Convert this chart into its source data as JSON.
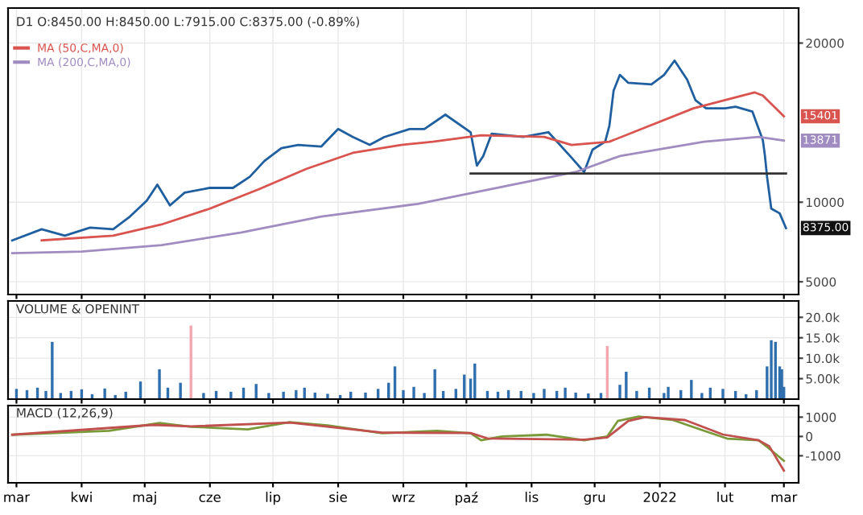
{
  "chart_data": [
    {
      "type": "line",
      "title": "D1 O:8450.00 H:8450.00 L:7915.00 C:8375.00 (-0.89%)",
      "legend": "top left",
      "grid": true,
      "tick_labels": "y",
      "xlim": [
        "2021-02-25",
        "2022-03-08"
      ],
      "ylim": [
        4200,
        22200
      ],
      "yticks": [
        5000,
        10000,
        20000
      ],
      "series": [
        {
          "color": "#1f5fa0",
          "x": [
            "2021-02-27",
            "2021-03-13",
            "2021-03-24",
            "2021-04-05",
            "2021-04-16",
            "2021-04-24",
            "2021-05-02",
            "2021-05-07",
            "2021-05-13",
            "2021-05-20",
            "2021-06-01",
            "2021-06-12",
            "2021-06-20",
            "2021-06-27",
            "2021-07-05",
            "2021-07-13",
            "2021-07-24",
            "2021-08-01",
            "2021-08-08",
            "2021-08-16",
            "2021-08-23",
            "2021-09-04",
            "2021-09-11",
            "2021-09-21",
            "2021-10-03",
            "2021-10-06",
            "2021-10-09",
            "2021-10-13",
            "2021-10-28",
            "2021-11-09",
            "2021-11-20",
            "2021-11-26",
            "2021-11-30",
            "2021-12-06",
            "2021-12-08",
            "2021-12-10",
            "2021-12-13",
            "2021-12-17",
            "2021-12-28",
            "2022-01-03",
            "2022-01-08",
            "2022-01-14",
            "2022-01-18",
            "2022-01-23",
            "2022-02-01",
            "2022-02-06",
            "2022-02-14",
            "2022-02-19",
            "2022-02-20",
            "2022-02-21",
            "2022-02-23",
            "2022-02-27",
            "2022-03-02"
          ],
          "values": [
            7600,
            8300,
            7900,
            8400,
            8300,
            9100,
            10100,
            11100,
            9800,
            10600,
            10900,
            10900,
            11600,
            12600,
            13400,
            13600,
            13500,
            14600,
            14100,
            13600,
            14100,
            14600,
            14600,
            15500,
            14400,
            12300,
            12900,
            14300,
            14100,
            14400,
            12800,
            11900,
            13300,
            13800,
            14800,
            17000,
            18000,
            17500,
            17400,
            18000,
            18900,
            17700,
            16400,
            15900,
            15900,
            16000,
            15700,
            13900,
            12900,
            11600,
            9600,
            9300,
            8375
          ]
        },
        {
          "name": "MA (50,C,MA,0)",
          "color": "#d9534f",
          "x": [
            "2021-03-13",
            "2021-04-16",
            "2021-05-09",
            "2021-06-01",
            "2021-06-24",
            "2021-07-17",
            "2021-08-08",
            "2021-08-31",
            "2021-09-15",
            "2021-10-08",
            "2021-11-07",
            "2021-11-20",
            "2021-12-08",
            "2022-01-17",
            "2022-02-15",
            "2022-02-19",
            "2022-03-01"
          ],
          "values": [
            7600,
            7900,
            8600,
            9600,
            10800,
            12100,
            13100,
            13600,
            13800,
            14200,
            14100,
            13600,
            13800,
            15900,
            16900,
            16700,
            15401
          ]
        },
        {
          "name": "MA (200,C,MA,0)",
          "color": "#a08cc0",
          "x": [
            "2021-02-27",
            "2021-04-01",
            "2021-05-09",
            "2021-06-16",
            "2021-07-24",
            "2021-09-08",
            "2021-11-22",
            "2021-12-13",
            "2022-01-22",
            "2022-02-17",
            "2022-03-01"
          ],
          "values": [
            6800,
            6900,
            7300,
            8100,
            9100,
            9900,
            11900,
            12900,
            13800,
            14100,
            13871
          ]
        },
        {
          "color": "#333333",
          "x": [
            "2021-10-03",
            "2022-03-02"
          ],
          "values": [
            11800,
            11800
          ]
        }
      ],
      "annotations": [
        {
          "text": "8375.00",
          "x": "2022-03-02",
          "y": 8375
        },
        {
          "text": "15401",
          "x": "2022-03-01",
          "y": 15401
        },
        {
          "text": "13871",
          "x": "2022-03-01",
          "y": 13871
        }
      ]
    },
    {
      "type": "bar",
      "title": "VOLUME & OPENINT",
      "grid": true,
      "tick_labels": "y",
      "xlim": [
        "2021-02-25",
        "2022-03-08"
      ],
      "ylim": [
        0,
        24000
      ],
      "yticks": [
        {
          "value": 5000,
          "label": "5.00k"
        },
        {
          "value": 10000,
          "label": "10.0k"
        },
        {
          "value": 15000,
          "label": "15.0k"
        },
        {
          "value": 20000,
          "label": "20.0k"
        }
      ],
      "x": [
        "2021-03-01",
        "2021-03-06",
        "2021-03-11",
        "2021-03-15",
        "2021-03-18",
        "2021-03-22",
        "2021-03-27",
        "2021-04-01",
        "2021-04-06",
        "2021-04-12",
        "2021-04-17",
        "2021-04-22",
        "2021-04-29",
        "2021-05-08",
        "2021-05-12",
        "2021-05-18",
        "2021-05-23",
        "2021-05-29",
        "2021-06-04",
        "2021-06-11",
        "2021-06-17",
        "2021-06-23",
        "2021-06-29",
        "2021-07-06",
        "2021-07-12",
        "2021-07-16",
        "2021-07-21",
        "2021-07-27",
        "2021-08-02",
        "2021-08-07",
        "2021-08-14",
        "2021-08-20",
        "2021-08-25",
        "2021-08-28",
        "2021-09-01",
        "2021-09-06",
        "2021-09-11",
        "2021-09-16",
        "2021-09-20",
        "2021-09-26",
        "2021-09-30",
        "2021-10-03",
        "2021-10-05",
        "2021-10-11",
        "2021-10-16",
        "2021-10-21",
        "2021-10-27",
        "2021-11-02",
        "2021-11-07",
        "2021-11-13",
        "2021-11-17",
        "2021-11-22",
        "2021-11-28",
        "2021-12-04",
        "2021-12-07",
        "2021-12-13",
        "2021-12-16",
        "2021-12-21",
        "2021-12-27",
        "2022-01-03",
        "2022-01-05",
        "2022-01-11",
        "2022-01-16",
        "2022-01-21",
        "2022-01-25",
        "2022-01-31",
        "2022-02-06",
        "2022-02-11",
        "2022-02-16",
        "2022-02-21",
        "2022-02-23",
        "2022-02-25",
        "2022-02-27",
        "2022-02-28",
        "2022-03-01"
      ],
      "values": [
        2500,
        2200,
        2800,
        2000,
        14000,
        1500,
        2000,
        2400,
        1200,
        2600,
        1000,
        1800,
        4300,
        7300,
        2800,
        4000,
        18000,
        1500,
        2000,
        1800,
        2800,
        3700,
        1500,
        1800,
        2200,
        2800,
        1600,
        1300,
        1000,
        1800,
        1600,
        2500,
        4000,
        8000,
        2200,
        3000,
        1500,
        7300,
        2000,
        2500,
        6000,
        5000,
        8700,
        2000,
        1800,
        2200,
        2000,
        1500,
        2500,
        2000,
        2800,
        1600,
        1400,
        1500,
        13000,
        3500,
        6700,
        2000,
        2800,
        1500,
        3000,
        2200,
        4700,
        1500,
        2800,
        2500,
        2000,
        1200,
        2200,
        8000,
        14400,
        14000,
        8000,
        7300,
        3000
      ],
      "colors": [
        "#2f6fad",
        "#2f6fad",
        "#2f6fad",
        "#2f6fad",
        "#2f6fad",
        "#2f6fad",
        "#2f6fad",
        "#2f6fad",
        "#2f6fad",
        "#2f6fad",
        "#2f6fad",
        "#2f6fad",
        "#2f6fad",
        "#2f6fad",
        "#2f6fad",
        "#2f6fad",
        "#f4a6b0",
        "#2f6fad",
        "#2f6fad",
        "#2f6fad",
        "#2f6fad",
        "#2f6fad",
        "#2f6fad",
        "#2f6fad",
        "#2f6fad",
        "#2f6fad",
        "#2f6fad",
        "#2f6fad",
        "#2f6fad",
        "#2f6fad",
        "#2f6fad",
        "#2f6fad",
        "#2f6fad",
        "#2f6fad",
        "#2f6fad",
        "#2f6fad",
        "#2f6fad",
        "#2f6fad",
        "#2f6fad",
        "#2f6fad",
        "#2f6fad",
        "#2f6fad",
        "#2f6fad",
        "#2f6fad",
        "#2f6fad",
        "#2f6fad",
        "#2f6fad",
        "#2f6fad",
        "#2f6fad",
        "#2f6fad",
        "#2f6fad",
        "#2f6fad",
        "#2f6fad",
        "#2f6fad",
        "#f4a6b0",
        "#2f6fad",
        "#2f6fad",
        "#2f6fad",
        "#2f6fad",
        "#2f6fad",
        "#2f6fad",
        "#2f6fad",
        "#2f6fad",
        "#2f6fad",
        "#2f6fad",
        "#2f6fad",
        "#2f6fad",
        "#2f6fad",
        "#2f6fad",
        "#2f6fad",
        "#2f6fad",
        "#2f6fad",
        "#2f6fad",
        "#2f6fad",
        "#2f6fad"
      ]
    },
    {
      "type": "line",
      "title": "MACD (12,26,9)",
      "grid": true,
      "xlim": [
        "2021-02-25",
        "2022-03-08"
      ],
      "ylim": [
        -2400,
        1600
      ],
      "yticks": [
        -1000,
        0,
        1000
      ],
      "xticks": [
        {
          "value": "2021-03-01",
          "label": "mar"
        },
        {
          "value": "2021-04-01",
          "label": "kwi"
        },
        {
          "value": "2021-05-01",
          "label": "maj"
        },
        {
          "value": "2021-06-01",
          "label": "cze"
        },
        {
          "value": "2021-07-01",
          "label": "lip"
        },
        {
          "value": "2021-08-01",
          "label": "sie"
        },
        {
          "value": "2021-09-01",
          "label": "wrz"
        },
        {
          "value": "2021-10-01",
          "label": "paź"
        },
        {
          "value": "2021-11-01",
          "label": "lis"
        },
        {
          "value": "2021-12-01",
          "label": "gru"
        },
        {
          "value": "2022-01-01",
          "label": "2022"
        },
        {
          "value": "2022-02-01",
          "label": "lut"
        },
        {
          "value": "2022-03-01",
          "label": "mar"
        }
      ],
      "series": [
        {
          "color": "#7a9a3a",
          "x": [
            "2021-02-27",
            "2021-04-14",
            "2021-05-08",
            "2021-05-23",
            "2021-06-19",
            "2021-07-09",
            "2021-07-27",
            "2021-08-22",
            "2021-09-17",
            "2021-10-03",
            "2021-10-08",
            "2021-10-18",
            "2021-11-08",
            "2021-11-26",
            "2021-12-07",
            "2021-12-12",
            "2021-12-22",
            "2022-01-07",
            "2022-01-20",
            "2022-02-02",
            "2022-02-17",
            "2022-02-22",
            "2022-03-01"
          ],
          "values": [
            90,
            290,
            700,
            500,
            370,
            740,
            570,
            170,
            290,
            170,
            -200,
            0,
            90,
            -200,
            0,
            800,
            1030,
            860,
            370,
            -110,
            -200,
            -630,
            -1260
          ]
        },
        {
          "color": "#c0504d",
          "x": [
            "2021-02-27",
            "2021-05-05",
            "2021-05-23",
            "2021-07-09",
            "2021-08-22",
            "2021-10-03",
            "2021-10-11",
            "2021-11-26",
            "2021-12-07",
            "2021-12-17",
            "2021-12-25",
            "2022-01-13",
            "2022-01-31",
            "2022-02-17",
            "2022-02-22",
            "2022-03-01"
          ],
          "values": [
            90,
            600,
            520,
            720,
            200,
            180,
            -100,
            -170,
            -50,
            800,
            1000,
            850,
            100,
            -200,
            -500,
            -1770
          ]
        }
      ]
    }
  ]
}
